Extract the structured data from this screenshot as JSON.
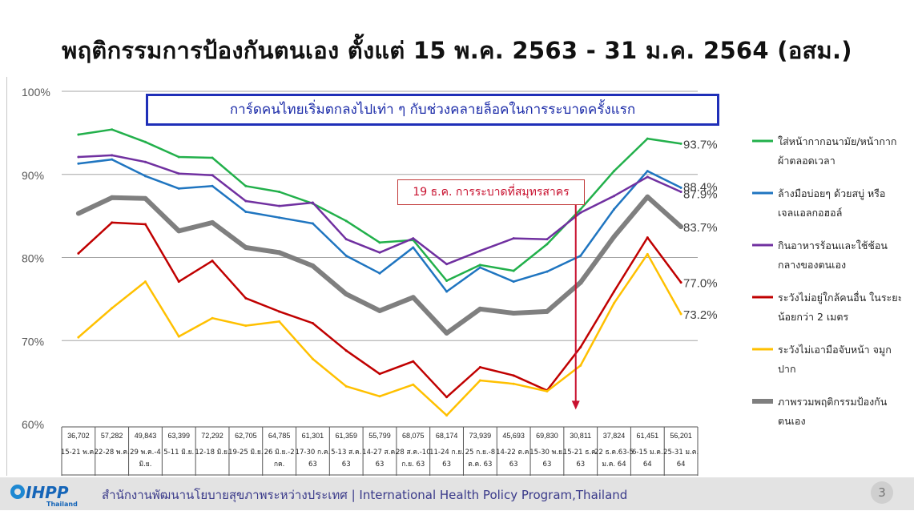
{
  "title": "พฤติกรรมการป้องกันตนเอง ตั้งแต่ 15 พ.ค. 2563 - 31 ม.ค. 2564 (อสม.)",
  "banner_text": "การ์ดคนไทยเริ่มตกลงไปเท่า ๆ กับช่วงคลายล็อคในการระบาดครั้งแรก",
  "callout_text": "19 ธ.ค. การระบาดที่สมุทรสาคร",
  "footer": {
    "org_text": "สำนักงานพัฒนานโยบายสุขภาพระหว่างประเทศ  |  International Health Policy Program,Thailand",
    "logo_text": "IHPP",
    "logo_sub": "Thailand",
    "page_number": "3"
  },
  "colors": {
    "banner_border": "#1f2fb8",
    "callout": "#c8102e",
    "arrow": "#c8102e"
  },
  "chart_data": {
    "type": "line",
    "ylim": [
      60,
      100
    ],
    "yticks": [
      60,
      70,
      80,
      90,
      100
    ],
    "ytick_labels": [
      "60%",
      "70%",
      "80%",
      "90%",
      "100%"
    ],
    "grid": true,
    "legend_position": "right",
    "categories": [
      {
        "n": "36,702",
        "period": [
          "15-21 พ.ค."
        ]
      },
      {
        "n": "57,282",
        "period": [
          "22-28 พ.ค."
        ]
      },
      {
        "n": "49,843",
        "period": [
          "29 พ.ค.-4",
          "มิ.ย."
        ]
      },
      {
        "n": "63,399",
        "period": [
          "5-11 มิ.ย."
        ]
      },
      {
        "n": "72,292",
        "period": [
          "12-18 มิ.ย."
        ]
      },
      {
        "n": "62,705",
        "period": [
          "19-25 มิ.ย."
        ]
      },
      {
        "n": "64,785",
        "period": [
          "26 มิ.ย.-2",
          "กค."
        ]
      },
      {
        "n": "61,301",
        "period": [
          "17-30 ก.ค.",
          "63"
        ]
      },
      {
        "n": "61,359",
        "period": [
          "5-13 ส.ค.",
          "63"
        ]
      },
      {
        "n": "55,799",
        "period": [
          "14-27 ส.ค.",
          "63"
        ]
      },
      {
        "n": "68,075",
        "period": [
          "28 ส.ค.-10",
          "ก.ย. 63"
        ]
      },
      {
        "n": "68,174",
        "period": [
          "11-24 ก.ย.",
          "63"
        ]
      },
      {
        "n": "73,939",
        "period": [
          "25 ก.ย.-8",
          "ต.ค. 63"
        ]
      },
      {
        "n": "45,693",
        "period": [
          "14-22 ต.ค.",
          "63"
        ]
      },
      {
        "n": "69,830",
        "period": [
          "15-30 พ.ย.",
          "63"
        ]
      },
      {
        "n": "30,811",
        "period": [
          "15-21 ธ.ค.",
          "63"
        ]
      },
      {
        "n": "37,824",
        "period": [
          "22 ธ.ค.63-5",
          "ม.ค. 64"
        ]
      },
      {
        "n": "61,451",
        "period": [
          "6-15 ม.ค.",
          "64"
        ]
      },
      {
        "n": "56,201",
        "period": [
          "25-31 ม.ค.",
          "64"
        ]
      }
    ],
    "series": [
      {
        "name": "ใส่หน้ากากอนามัย/หน้ากากผ้าตลอดเวลา",
        "legend_lines": [
          "ใส่หน้ากากอนามัย/หน้ากาก",
          "ผ้าตลอดเวลา"
        ],
        "color": "#22b04b",
        "width": 2.5,
        "values": [
          94.8,
          95.4,
          93.9,
          92.1,
          92.0,
          88.6,
          87.9,
          86.5,
          84.4,
          81.8,
          82.1,
          77.2,
          79.1,
          78.4,
          81.6,
          85.8,
          90.4,
          94.3,
          93.7
        ],
        "end_label": "93.7%"
      },
      {
        "name": "ล้างมือบ่อยๆ ด้วยสบู่ หรือเจลแอลกอฮอล์",
        "legend_lines": [
          "ล้างมือบ่อยๆ ด้วยสบู่ หรือ",
          "เจลแอลกอฮอล์"
        ],
        "color": "#1f75c0",
        "width": 2.5,
        "values": [
          91.3,
          91.8,
          89.8,
          88.3,
          88.6,
          85.5,
          84.8,
          84.1,
          80.2,
          78.1,
          81.2,
          75.9,
          78.8,
          77.1,
          78.3,
          80.2,
          85.8,
          90.4,
          88.4
        ],
        "end_label": "88.4%"
      },
      {
        "name": "กินอาหารร้อนและใช้ช้อนกลางของตนเอง",
        "legend_lines": [
          "กินอาหารร้อนและใช้ช้อน",
          "กลางของตนเอง"
        ],
        "color": "#7030a0",
        "width": 2.5,
        "values": [
          92.1,
          92.3,
          91.5,
          90.1,
          89.9,
          86.8,
          86.2,
          86.6,
          82.2,
          80.6,
          82.3,
          79.2,
          80.8,
          82.3,
          82.2,
          85.4,
          87.4,
          89.7,
          87.9
        ],
        "end_label": "87.9%"
      },
      {
        "name": "ระวังไม่อยู่ใกล้คนอื่น ในระยะน้อยกว่า 2 เมตร",
        "legend_lines": [
          "ระวังไม่อยู่ใกล้คนอื่น ในระยะ",
          "น้อยกว่า 2 เมตร"
        ],
        "color": "#c00000",
        "width": 2.5,
        "values": [
          80.5,
          84.2,
          84.0,
          77.1,
          79.6,
          75.1,
          73.5,
          72.1,
          68.8,
          66.0,
          67.5,
          63.2,
          66.8,
          65.8,
          64.0,
          69.2,
          75.9,
          82.4,
          77.0
        ],
        "end_label": "77.0%"
      },
      {
        "name": "ระวังไม่เอามือจับหน้า จมูกปาก",
        "legend_lines": [
          "ระวังไม่เอามือจับหน้า จมูก",
          "ปาก"
        ],
        "color": "#ffc000",
        "width": 2.5,
        "values": [
          70.4,
          73.9,
          77.1,
          70.5,
          72.7,
          71.8,
          72.3,
          67.8,
          64.5,
          63.3,
          64.7,
          61.0,
          65.2,
          64.8,
          63.9,
          67.0,
          74.5,
          80.4,
          73.2
        ],
        "end_label": "73.2%"
      },
      {
        "name": "ภาพรวมพฤติกรรมป้องกันตนเอง",
        "legend_lines": [
          "ภาพรวมพฤติกรรมป้องกัน",
          "ตนเอง"
        ],
        "color": "#7f7f7f",
        "width": 6,
        "values": [
          85.3,
          87.2,
          87.1,
          83.2,
          84.2,
          81.2,
          80.6,
          79.0,
          75.6,
          73.6,
          75.2,
          70.9,
          73.8,
          73.3,
          73.5,
          77.0,
          82.5,
          87.3,
          83.7
        ],
        "end_label": "83.7%"
      }
    ],
    "event_marker": {
      "category_index": 15,
      "from_value": 86.5,
      "to_value": 61.8
    }
  }
}
